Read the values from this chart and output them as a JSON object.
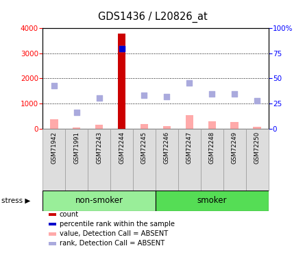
{
  "title": "GDS1436 / L20826_at",
  "samples": [
    "GSM71942",
    "GSM71991",
    "GSM72243",
    "GSM72244",
    "GSM72245",
    "GSM72246",
    "GSM72247",
    "GSM72248",
    "GSM72249",
    "GSM72250"
  ],
  "count_values": [
    0,
    0,
    0,
    3780,
    0,
    0,
    0,
    0,
    0,
    0
  ],
  "absent_values": [
    380,
    50,
    140,
    0,
    170,
    100,
    530,
    300,
    260,
    55
  ],
  "rank_absent_values": [
    1700,
    650,
    1230,
    3200,
    1340,
    1270,
    1810,
    1390,
    1390,
    1120
  ],
  "pct_rank_x": [
    3
  ],
  "pct_rank_y": [
    3200
  ],
  "ylim_left": [
    0,
    4000
  ],
  "ylim_right": [
    0,
    100
  ],
  "yticks_left": [
    0,
    1000,
    2000,
    3000,
    4000
  ],
  "yticks_right": [
    0,
    25,
    50,
    75,
    100
  ],
  "ytick_labels_right": [
    "0",
    "25",
    "50",
    "75",
    "100%"
  ],
  "group_labels": [
    "non-smoker",
    "smoker"
  ],
  "stress_label": "stress",
  "legend_items": [
    {
      "label": "count",
      "color": "#cc0000"
    },
    {
      "label": "percentile rank within the sample",
      "color": "#0000cc"
    },
    {
      "label": "value, Detection Call = ABSENT",
      "color": "#ffaaaa"
    },
    {
      "label": "rank, Detection Call = ABSENT",
      "color": "#aaaadd"
    }
  ],
  "bar_color_count": "#cc0000",
  "bar_color_absent": "#ffaaaa",
  "scatter_color_rank_absent": "#aaaadd",
  "scatter_color_pct": "#0000cc",
  "bg_plot": "#ffffff",
  "bg_tick_labels": "#dddddd",
  "bg_group_nonsmoker": "#99ee99",
  "bg_group_smoker": "#55dd55",
  "n_samples": 10,
  "bar_width": 0.35
}
